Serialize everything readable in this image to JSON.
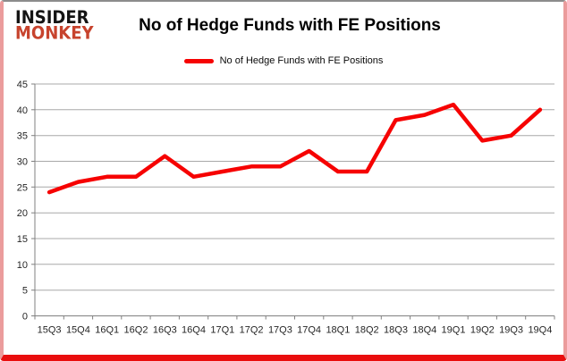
{
  "logo": {
    "line1": "INSIDER",
    "line2": "MONKEY"
  },
  "header": {
    "title": "No of Hedge Funds with FE Positions"
  },
  "legend": {
    "label": "No of Hedge Funds with FE Positions"
  },
  "colors": {
    "series_red": "#f60202",
    "gridline": "#a8a8a8",
    "axis": "#808080",
    "tick_text": "#262626",
    "logo_black": "#141414",
    "logo_red": "#c7432d",
    "frame_bottom": "#e90d0d",
    "frame_sides": "#eb9c9c",
    "frame_top": "#8c8c8c"
  },
  "chart_data": {
    "type": "line",
    "title": "No of Hedge Funds with FE Positions",
    "categories": [
      "15Q3",
      "15Q4",
      "16Q1",
      "16Q2",
      "16Q3",
      "16Q4",
      "17Q1",
      "17Q2",
      "17Q3",
      "17Q4",
      "18Q1",
      "18Q2",
      "18Q3",
      "18Q4",
      "19Q1",
      "19Q2",
      "19Q3",
      "19Q4"
    ],
    "series": [
      {
        "name": "No of Hedge Funds with FE Positions",
        "color": "#f60202",
        "values": [
          24,
          26,
          27,
          27,
          31,
          27,
          28,
          29,
          29,
          32,
          28,
          28,
          38,
          39,
          41,
          34,
          35,
          40
        ]
      }
    ],
    "xlabel": "",
    "ylabel": "",
    "ylim": [
      0,
      45
    ],
    "ytick_step": 5,
    "grid": true,
    "legend_position": "top"
  }
}
